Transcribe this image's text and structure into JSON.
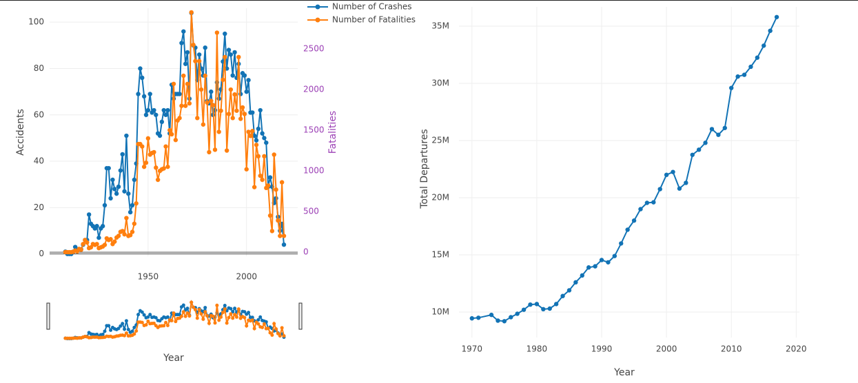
{
  "chart_data": [
    {
      "type": "line",
      "xlabel": "Year",
      "ylabel": "Accidents",
      "y2label": "Fatalities",
      "y2color": "#9b3fb5",
      "grid": true,
      "rangeslider": true,
      "xlim": [
        1900,
        2026
      ],
      "xticks": [
        1950,
        2000
      ],
      "ylim": [
        -1,
        106
      ],
      "yticks": [
        0,
        20,
        40,
        60,
        80,
        100
      ],
      "y2lim": [
        -50,
        3000
      ],
      "y2ticks": [
        0,
        500,
        1000,
        1500,
        2000,
        2500
      ],
      "x": [
        1908,
        1909,
        1910,
        1911,
        1912,
        1913,
        1914,
        1915,
        1916,
        1917,
        1918,
        1919,
        1920,
        1921,
        1922,
        1923,
        1924,
        1925,
        1926,
        1927,
        1928,
        1929,
        1930,
        1931,
        1932,
        1933,
        1934,
        1935,
        1936,
        1937,
        1938,
        1939,
        1940,
        1941,
        1942,
        1943,
        1944,
        1945,
        1946,
        1947,
        1948,
        1949,
        1950,
        1951,
        1952,
        1953,
        1954,
        1955,
        1956,
        1957,
        1958,
        1959,
        1960,
        1961,
        1962,
        1963,
        1964,
        1965,
        1966,
        1967,
        1968,
        1969,
        1970,
        1971,
        1972,
        1973,
        1974,
        1975,
        1976,
        1977,
        1978,
        1979,
        1980,
        1981,
        1982,
        1983,
        1984,
        1985,
        1986,
        1987,
        1988,
        1989,
        1990,
        1991,
        1992,
        1993,
        1994,
        1995,
        1996,
        1997,
        1998,
        1999,
        2000,
        2001,
        2002,
        2003,
        2004,
        2005,
        2006,
        2007,
        2008,
        2009,
        2010,
        2011,
        2012,
        2013,
        2014,
        2015,
        2016,
        2017,
        2018,
        2019
      ],
      "series": [
        {
          "name": "Number of Crashes",
          "color": "#1273b5",
          "values": [
            1,
            0,
            0,
            0,
            1,
            3,
            2,
            2,
            2,
            4,
            6,
            6,
            17,
            13,
            12,
            11,
            12,
            7,
            11,
            12,
            21,
            37,
            37,
            24,
            32,
            28,
            26,
            29,
            36,
            43,
            27,
            51,
            26,
            18,
            21,
            32,
            39,
            69,
            80,
            76,
            68,
            60,
            62,
            69,
            61,
            62,
            60,
            52,
            51,
            57,
            62,
            60,
            62,
            52,
            73,
            67,
            69,
            69,
            69,
            91,
            96,
            82,
            87,
            67,
            104,
            90,
            89,
            75,
            86,
            80,
            77,
            89,
            66,
            65,
            70,
            60,
            62,
            74,
            67,
            71,
            83,
            95,
            80,
            88,
            86,
            77,
            87,
            76,
            82,
            69,
            78,
            77,
            70,
            75,
            61,
            61,
            51,
            49,
            54,
            62,
            52,
            50,
            48,
            29,
            33,
            29,
            22,
            24,
            16,
            10,
            13,
            4
          ]
        },
        {
          "name": "Number of Fatalities",
          "color": "#ff7f0e",
          "axis": "y2",
          "values": [
            1,
            0,
            0,
            0,
            5,
            20,
            10,
            40,
            30,
            100,
            150,
            120,
            50,
            60,
            100,
            90,
            100,
            50,
            60,
            70,
            90,
            170,
            150,
            160,
            100,
            130,
            180,
            200,
            250,
            260,
            220,
            420,
            200,
            210,
            250,
            350,
            600,
            1330,
            1330,
            1300,
            1050,
            1100,
            1400,
            1200,
            1220,
            1230,
            1040,
            890,
            1000,
            1020,
            1030,
            1300,
            1050,
            1500,
            1450,
            2070,
            1380,
            1620,
            1650,
            1800,
            2170,
            1800,
            2070,
            1830,
            2950,
            2550,
            2350,
            1650,
            2350,
            2000,
            1570,
            2170,
            1840,
            1230,
            1860,
            1810,
            1260,
            2700,
            1480,
            1740,
            2120,
            2400,
            1250,
            1700,
            2000,
            1650,
            1940,
            1740,
            2400,
            1640,
            1780,
            1700,
            1020,
            1480,
            1430,
            1490,
            800,
            1320,
            1180,
            940,
            890,
            1180,
            790,
            820,
            450,
            260,
            1200,
            770,
            390,
            200,
            860,
            200
          ]
        }
      ]
    },
    {
      "type": "line",
      "xlabel": "Year",
      "ylabel": "Total Departures",
      "grid": true,
      "color": "#1273b5",
      "xlim": [
        1968,
        2020.5
      ],
      "xticks": [
        1970,
        1980,
        1990,
        2000,
        2010,
        2020
      ],
      "ylim": [
        7770000,
        36690000
      ],
      "yticks": [
        {
          "value": 10000000,
          "label": "10M"
        },
        {
          "value": 15000000,
          "label": "15M"
        },
        {
          "value": 20000000,
          "label": "20M"
        },
        {
          "value": 25000000,
          "label": "25M"
        },
        {
          "value": 30000000,
          "label": "30M"
        },
        {
          "value": 35000000,
          "label": "35M"
        }
      ],
      "x": [
        1970,
        1971,
        1973,
        1974,
        1975,
        1976,
        1977,
        1978,
        1979,
        1980,
        1981,
        1982,
        1983,
        1984,
        1985,
        1986,
        1987,
        1988,
        1989,
        1990,
        1991,
        1992,
        1993,
        1994,
        1995,
        1996,
        1997,
        1998,
        1999,
        2000,
        2001,
        2002,
        2003,
        2004,
        2005,
        2006,
        2007,
        2008,
        2009,
        2010,
        2011,
        2012,
        2013,
        2014,
        2015,
        2016,
        2017
      ],
      "values": [
        9450000,
        9500000,
        9750000,
        9250000,
        9200000,
        9550000,
        9850000,
        10200000,
        10650000,
        10700000,
        10250000,
        10300000,
        10700000,
        11400000,
        11900000,
        12600000,
        13200000,
        13900000,
        14000000,
        14550000,
        14350000,
        14900000,
        16000000,
        17200000,
        18000000,
        19000000,
        19550000,
        19600000,
        20750000,
        22000000,
        22250000,
        20800000,
        21300000,
        23750000,
        24200000,
        24800000,
        26000000,
        25500000,
        26100000,
        29600000,
        30600000,
        30750000,
        31450000,
        32250000,
        33300000,
        34600000,
        35800000
      ]
    }
  ]
}
